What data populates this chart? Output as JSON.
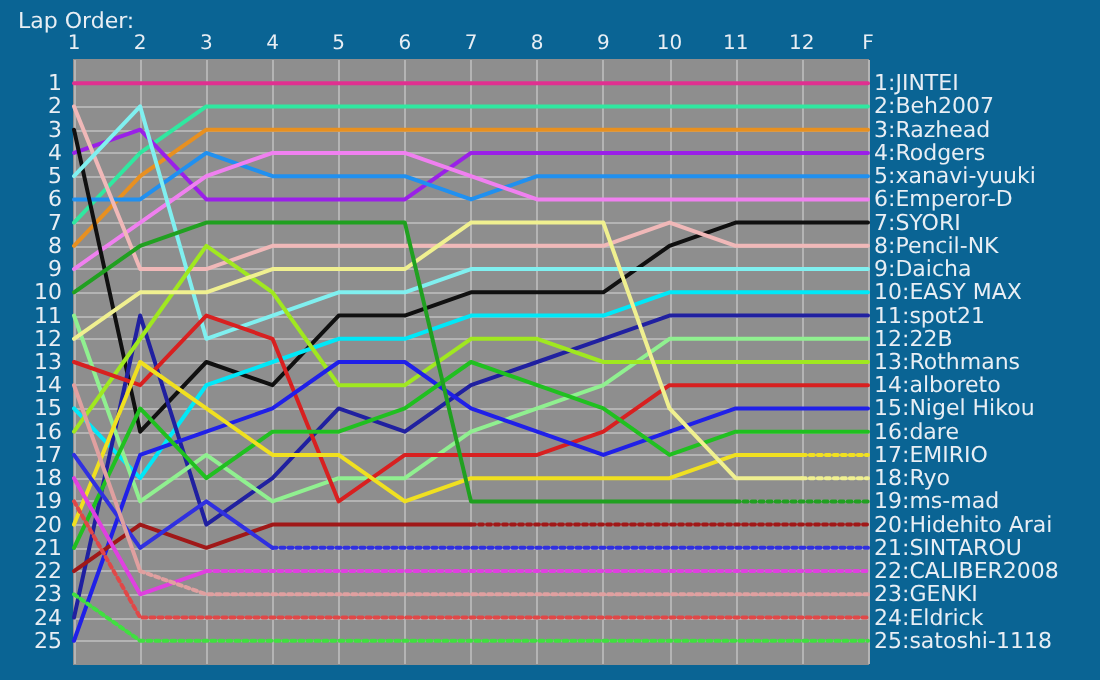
{
  "chart_data": {
    "type": "line",
    "title": "Lap Order:",
    "categories": [
      "1",
      "2",
      "3",
      "4",
      "5",
      "6",
      "7",
      "8",
      "9",
      "10",
      "11",
      "12",
      "F"
    ],
    "ylim": [
      26,
      0
    ],
    "yticks": [
      1,
      2,
      3,
      4,
      5,
      6,
      7,
      8,
      9,
      10,
      11,
      12,
      13,
      14,
      15,
      16,
      17,
      18,
      19,
      20,
      21,
      22,
      23,
      24,
      25
    ],
    "y2lim": [
      26,
      0
    ],
    "y2ticks": [
      {
        "value": 1,
        "label": "1:JINTEI"
      },
      {
        "value": 2,
        "label": "2:Beh2007"
      },
      {
        "value": 3,
        "label": "3:Razhead"
      },
      {
        "value": 4,
        "label": "4:Rodgers"
      },
      {
        "value": 5,
        "label": "5:xanavi-yuuki"
      },
      {
        "value": 6,
        "label": "6:Emperor-D"
      },
      {
        "value": 7,
        "label": "7:SYORI"
      },
      {
        "value": 8,
        "label": "8:Pencil-NK"
      },
      {
        "value": 9,
        "label": "9:Daicha"
      },
      {
        "value": 10,
        "label": "10:EASY MAX"
      },
      {
        "value": 11,
        "label": "11:spot21"
      },
      {
        "value": 12,
        "label": "12:22B"
      },
      {
        "value": 13,
        "label": "13:Rothmans"
      },
      {
        "value": 14,
        "label": "14:alboreto"
      },
      {
        "value": 15,
        "label": "15:Nigel Hikou"
      },
      {
        "value": 16,
        "label": "16:dare"
      },
      {
        "value": 17,
        "label": "17:EMIRIO"
      },
      {
        "value": 18,
        "label": "18:Ryo"
      },
      {
        "value": 19,
        "label": "19:ms-mad"
      },
      {
        "value": 20,
        "label": "20:Hidehito Arai"
      },
      {
        "value": 21,
        "label": "21:SINTAROU"
      },
      {
        "value": 22,
        "label": "22:CALIBER2008"
      },
      {
        "value": 23,
        "label": "23:GENKI"
      },
      {
        "value": 24,
        "label": "24:Eldrick"
      },
      {
        "value": 25,
        "label": "25:satoshi-1118"
      }
    ],
    "grid": true,
    "marker": "none",
    "line_style": "solid",
    "series": [
      {
        "color": "#e03090",
        "values": [
          1,
          1,
          1,
          1,
          1,
          1,
          1,
          1,
          1,
          1,
          1,
          1,
          1
        ]
      },
      {
        "color": "#30e8a0",
        "values": [
          7,
          4,
          2,
          2,
          2,
          2,
          2,
          2,
          2,
          2,
          2,
          2,
          2
        ]
      },
      {
        "color": "#e89020",
        "values": [
          8,
          5,
          3,
          3,
          3,
          3,
          3,
          3,
          3,
          3,
          3,
          3,
          3
        ]
      },
      {
        "color": "#9a20e8",
        "values": [
          4,
          3,
          6,
          6,
          6,
          6,
          4,
          4,
          4,
          4,
          4,
          4,
          4
        ]
      },
      {
        "color": "#2090f0",
        "values": [
          6,
          6,
          4,
          5,
          5,
          5,
          6,
          5,
          5,
          5,
          5,
          5,
          5
        ]
      },
      {
        "color": "#f080f0",
        "values": [
          9,
          7,
          5,
          4,
          4,
          4,
          5,
          6,
          6,
          6,
          6,
          6,
          6
        ]
      },
      {
        "color": "#101010",
        "values": [
          3,
          16,
          13,
          14,
          11,
          11,
          10,
          10,
          10,
          8,
          7,
          7,
          7
        ]
      },
      {
        "color": "#f0b8b8",
        "values": [
          2,
          9,
          9,
          8,
          8,
          8,
          8,
          8,
          8,
          7,
          8,
          8,
          8
        ]
      },
      {
        "color": "#80f0f0",
        "values": [
          5,
          2,
          12,
          11,
          10,
          10,
          9,
          9,
          9,
          9,
          9,
          9,
          9
        ]
      },
      {
        "color": "#00e8f8",
        "values": [
          15,
          18,
          14,
          13,
          12,
          12,
          11,
          11,
          11,
          10,
          10,
          10,
          10
        ]
      },
      {
        "color": "#2020a0",
        "values": [
          24,
          11,
          20,
          18,
          15,
          16,
          14,
          13,
          12,
          11,
          11,
          11,
          11
        ]
      },
      {
        "color": "#90f090",
        "values": [
          11,
          19,
          17,
          19,
          18,
          18,
          16,
          15,
          14,
          12,
          12,
          12,
          12
        ]
      },
      {
        "color": "#a0e820",
        "values": [
          16,
          12,
          8,
          10,
          14,
          14,
          12,
          12,
          13,
          13,
          13,
          13,
          13
        ]
      },
      {
        "color": "#d82020",
        "values": [
          13,
          14,
          11,
          12,
          19,
          17,
          17,
          17,
          16,
          14,
          14,
          14,
          14
        ]
      },
      {
        "color": "#2020e8",
        "values": [
          25,
          17,
          16,
          15,
          13,
          13,
          15,
          16,
          17,
          16,
          15,
          15,
          15
        ]
      },
      {
        "color": "#20c020",
        "values": [
          21,
          15,
          18,
          16,
          16,
          15,
          13,
          14,
          15,
          17,
          16,
          16,
          16
        ]
      },
      {
        "color": "#f0e020",
        "values": [
          20,
          13,
          15,
          17,
          17,
          19,
          18,
          18,
          18,
          18,
          17,
          17,
          null
        ]
      },
      {
        "color": "#f0e020",
        "line_style": "dotted",
        "values": [
          null,
          null,
          null,
          null,
          null,
          null,
          null,
          null,
          null,
          null,
          null,
          17,
          17
        ]
      },
      {
        "color": "#f0f090",
        "values": [
          12,
          10,
          10,
          9,
          9,
          9,
          7,
          7,
          7,
          15,
          18,
          18,
          null
        ]
      },
      {
        "color": "#f0f090",
        "line_style": "dotted",
        "values": [
          null,
          null,
          null,
          null,
          null,
          null,
          null,
          null,
          null,
          null,
          null,
          18,
          18
        ]
      },
      {
        "color": "#20a020",
        "values": [
          10,
          8,
          7,
          7,
          7,
          7,
          19,
          19,
          19,
          19,
          19,
          null,
          null
        ]
      },
      {
        "color": "#20a020",
        "line_style": "dotted",
        "values": [
          null,
          null,
          null,
          null,
          null,
          null,
          null,
          null,
          null,
          null,
          19,
          19,
          19
        ]
      },
      {
        "color": "#a01818",
        "values": [
          22,
          20,
          21,
          20,
          20,
          20,
          20,
          null,
          null,
          null,
          null,
          null,
          null
        ]
      },
      {
        "color": "#a01818",
        "line_style": "dotted",
        "values": [
          null,
          null,
          null,
          null,
          null,
          null,
          20,
          20,
          20,
          20,
          20,
          20,
          20
        ]
      },
      {
        "color": "#3030e0",
        "values": [
          17,
          21,
          19,
          21,
          null,
          null,
          null,
          null,
          null,
          null,
          null,
          null,
          null
        ]
      },
      {
        "color": "#3030e0",
        "line_style": "dotted",
        "values": [
          null,
          null,
          null,
          21,
          21,
          21,
          21,
          21,
          21,
          21,
          21,
          21,
          21
        ]
      },
      {
        "color": "#e040e0",
        "values": [
          18,
          23,
          22,
          null,
          null,
          null,
          null,
          null,
          null,
          null,
          null,
          null,
          null
        ]
      },
      {
        "color": "#e040e0",
        "line_style": "dotted",
        "values": [
          null,
          null,
          22,
          22,
          22,
          22,
          22,
          22,
          22,
          22,
          22,
          22,
          22
        ]
      },
      {
        "color": "#e0a0a0",
        "values": [
          14,
          22,
          null,
          null,
          null,
          null,
          null,
          null,
          null,
          null,
          null,
          null,
          null
        ]
      },
      {
        "color": "#e0a0a0",
        "line_style": "dotted",
        "values": [
          null,
          22,
          23,
          23,
          23,
          23,
          23,
          23,
          23,
          23,
          23,
          23,
          23
        ]
      },
      {
        "color": "#e04848",
        "line_style": "dotted",
        "values": [
          19,
          24,
          24,
          24,
          24,
          24,
          24,
          24,
          24,
          24,
          24,
          24,
          24
        ]
      },
      {
        "color": "#40e040",
        "line_style": "dotted",
        "values": [
          23,
          25,
          25,
          25,
          25,
          25,
          25,
          25,
          25,
          25,
          25,
          25,
          25
        ]
      }
    ]
  }
}
